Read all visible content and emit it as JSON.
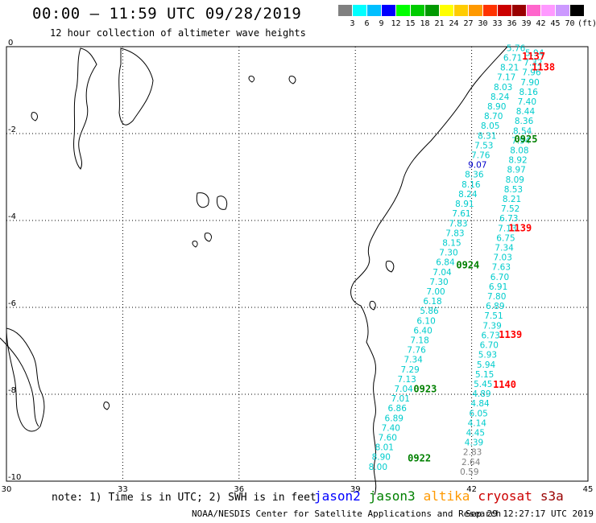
{
  "title": "00:00 – 11:59 UTC 09/28/2019",
  "subtitle": "12 hour collection of altimeter wave heights",
  "scale": {
    "labels": [
      "3",
      "6",
      "9",
      "12",
      "15",
      "18",
      "21",
      "24",
      "27",
      "30",
      "33",
      "36",
      "39",
      "42",
      "45",
      "70"
    ],
    "unit": "(ft)",
    "colors": [
      "#808080",
      "#00ffff",
      "#00bfff",
      "#0000ff",
      "#00ff00",
      "#00cc00",
      "#009900",
      "#ffff00",
      "#ffcc00",
      "#ff9900",
      "#ff3300",
      "#cc0000",
      "#990000",
      "#ff66cc",
      "#ff99ff",
      "#cc99ff",
      "#000000"
    ]
  },
  "axes": {
    "x_ticks": [
      "30",
      "33",
      "36",
      "39",
      "42",
      "45"
    ],
    "y_ticks": [
      "0",
      "-2",
      "-4",
      "-6",
      "-8",
      "-10"
    ]
  },
  "tracks": [
    {
      "time": "1137",
      "color": "#ff0000",
      "lon": 43.3,
      "lat": -0.3
    },
    {
      "time": "1138",
      "color": "#ff0000",
      "lon": 43.55,
      "lat": -0.55
    },
    {
      "time": "0925",
      "color": "#008000",
      "lon": 43.1,
      "lat": -2.2
    },
    {
      "time": "1139",
      "color": "#ff0000",
      "lon": 42.95,
      "lat": -4.25
    },
    {
      "time": "0924",
      "color": "#008000",
      "lon": 41.6,
      "lat": -5.1
    },
    {
      "time": "1139",
      "color": "#ff0000",
      "lon": 42.7,
      "lat": -6.7
    },
    {
      "time": "1140",
      "color": "#ff0000",
      "lon": 42.55,
      "lat": -7.85
    },
    {
      "time": "0923",
      "color": "#008000",
      "lon": 40.5,
      "lat": -7.95
    },
    {
      "time": "0922",
      "color": "#008000",
      "lon": 40.35,
      "lat": -9.55
    }
  ],
  "chart_data": {
    "type": "scatter",
    "x_range": [
      30,
      45
    ],
    "y_range": [
      -10,
      0
    ],
    "points": [
      {
        "v": "5.76",
        "c": "#00cccc"
      },
      {
        "v": "5.94",
        "c": "#00cccc"
      },
      {
        "v": "6.71",
        "c": "#00cccc"
      },
      {
        "v": "7.32",
        "c": "#00cccc"
      },
      {
        "v": "8.21",
        "c": "#00cccc"
      },
      {
        "v": "7.96",
        "c": "#00cccc"
      },
      {
        "v": "7.17",
        "c": "#00cccc"
      },
      {
        "v": "7.90",
        "c": "#00cccc"
      },
      {
        "v": "8.03",
        "c": "#00cccc"
      },
      {
        "v": "8.16",
        "c": "#00cccc"
      },
      {
        "v": "8.24",
        "c": "#00cccc"
      },
      {
        "v": "7.40",
        "c": "#00cccc"
      },
      {
        "v": "8.90",
        "c": "#00cccc"
      },
      {
        "v": "8.44",
        "c": "#00cccc"
      },
      {
        "v": "8.70",
        "c": "#00cccc"
      },
      {
        "v": "8.36",
        "c": "#00cccc"
      },
      {
        "v": "8.05",
        "c": "#00cccc"
      },
      {
        "v": "8.54",
        "c": "#00cccc"
      },
      {
        "v": "8.31",
        "c": "#00cccc"
      },
      {
        "v": "7.94",
        "c": "#00cccc"
      },
      {
        "v": "7.53",
        "c": "#00cccc"
      },
      {
        "v": "8.08",
        "c": "#00cccc"
      },
      {
        "v": "7.76",
        "c": "#00cccc"
      },
      {
        "v": "8.92",
        "c": "#00cccc"
      },
      {
        "v": "9.07",
        "c": "#0000cc"
      },
      {
        "v": "8.97",
        "c": "#00cccc"
      },
      {
        "v": "8.36",
        "c": "#00cccc"
      },
      {
        "v": "8.09",
        "c": "#00cccc"
      },
      {
        "v": "8.16",
        "c": "#00cccc"
      },
      {
        "v": "8.53",
        "c": "#00cccc"
      },
      {
        "v": "8.24",
        "c": "#00cccc"
      },
      {
        "v": "8.21",
        "c": "#00cccc"
      },
      {
        "v": "8.91",
        "c": "#00cccc"
      },
      {
        "v": "7.52",
        "c": "#00cccc"
      },
      {
        "v": "7.61",
        "c": "#00cccc"
      },
      {
        "v": "6.73",
        "c": "#00cccc"
      },
      {
        "v": "7.83",
        "c": "#00cccc"
      },
      {
        "v": "7.13",
        "c": "#00cccc"
      },
      {
        "v": "7.83",
        "c": "#00cccc"
      },
      {
        "v": "6.75",
        "c": "#00cccc"
      },
      {
        "v": "8.15",
        "c": "#00cccc"
      },
      {
        "v": "7.34",
        "c": "#00cccc"
      },
      {
        "v": "7.30",
        "c": "#00cccc"
      },
      {
        "v": "7.03",
        "c": "#00cccc"
      },
      {
        "v": "6.84",
        "c": "#00cccc"
      },
      {
        "v": "7.63",
        "c": "#00cccc"
      },
      {
        "v": "7.04",
        "c": "#00cccc"
      },
      {
        "v": "6.70",
        "c": "#00cccc"
      },
      {
        "v": "7.30",
        "c": "#00cccc"
      },
      {
        "v": "6.91",
        "c": "#00cccc"
      },
      {
        "v": "7.00",
        "c": "#00cccc"
      },
      {
        "v": "7.80",
        "c": "#00cccc"
      },
      {
        "v": "6.18",
        "c": "#00cccc"
      },
      {
        "v": "6.89",
        "c": "#00cccc"
      },
      {
        "v": "5.86",
        "c": "#00cccc"
      },
      {
        "v": "7.51",
        "c": "#00cccc"
      },
      {
        "v": "6.10",
        "c": "#00cccc"
      },
      {
        "v": "7.39",
        "c": "#00cccc"
      },
      {
        "v": "6.40",
        "c": "#00cccc"
      },
      {
        "v": "6.73",
        "c": "#00cccc"
      },
      {
        "v": "7.18",
        "c": "#00cccc"
      },
      {
        "v": "6.70",
        "c": "#00cccc"
      },
      {
        "v": "7.76",
        "c": "#00cccc"
      },
      {
        "v": "5.93",
        "c": "#00cccc"
      },
      {
        "v": "7.34",
        "c": "#00cccc"
      },
      {
        "v": "5.94",
        "c": "#00cccc"
      },
      {
        "v": "7.29",
        "c": "#00cccc"
      },
      {
        "v": "5.15",
        "c": "#00cccc"
      },
      {
        "v": "7.13",
        "c": "#00cccc"
      },
      {
        "v": "5.45",
        "c": "#00cccc"
      },
      {
        "v": "7.04",
        "c": "#00cccc"
      },
      {
        "v": "4.89",
        "c": "#00cccc"
      },
      {
        "v": "7.01",
        "c": "#00cccc"
      },
      {
        "v": "4.84",
        "c": "#00cccc"
      },
      {
        "v": "6.86",
        "c": "#00cccc"
      },
      {
        "v": "6.05",
        "c": "#00cccc"
      },
      {
        "v": "6.89",
        "c": "#00cccc"
      },
      {
        "v": "4.14",
        "c": "#00cccc"
      },
      {
        "v": "7.40",
        "c": "#00cccc"
      },
      {
        "v": "4.45",
        "c": "#00cccc"
      },
      {
        "v": "7.60",
        "c": "#00cccc"
      },
      {
        "v": "4.39",
        "c": "#00cccc"
      },
      {
        "v": "8.01",
        "c": "#00cccc"
      },
      {
        "v": "2.83",
        "c": "#808080"
      },
      {
        "v": "8.90",
        "c": "#00cccc"
      },
      {
        "v": "2.64",
        "c": "#808080"
      },
      {
        "v": "8.00",
        "c": "#00cccc"
      },
      {
        "v": "0.59",
        "c": "#808080"
      }
    ]
  },
  "note": "note: 1) Time is in UTC; 2) SWH is in feet",
  "satellites": [
    {
      "name": "jason2",
      "color": "#0000ff"
    },
    {
      "name": "jason3",
      "color": "#008000"
    },
    {
      "name": "altika",
      "color": "#ff9900"
    },
    {
      "name": "cryosat",
      "color": "#cc0000"
    },
    {
      "name": "s3a",
      "color": "#990000"
    }
  ],
  "footer_left": "NOAA/NESDIS Center for Satellite Applications and Research",
  "footer_right": "Sep 29 12:27:17 UTC 2019"
}
